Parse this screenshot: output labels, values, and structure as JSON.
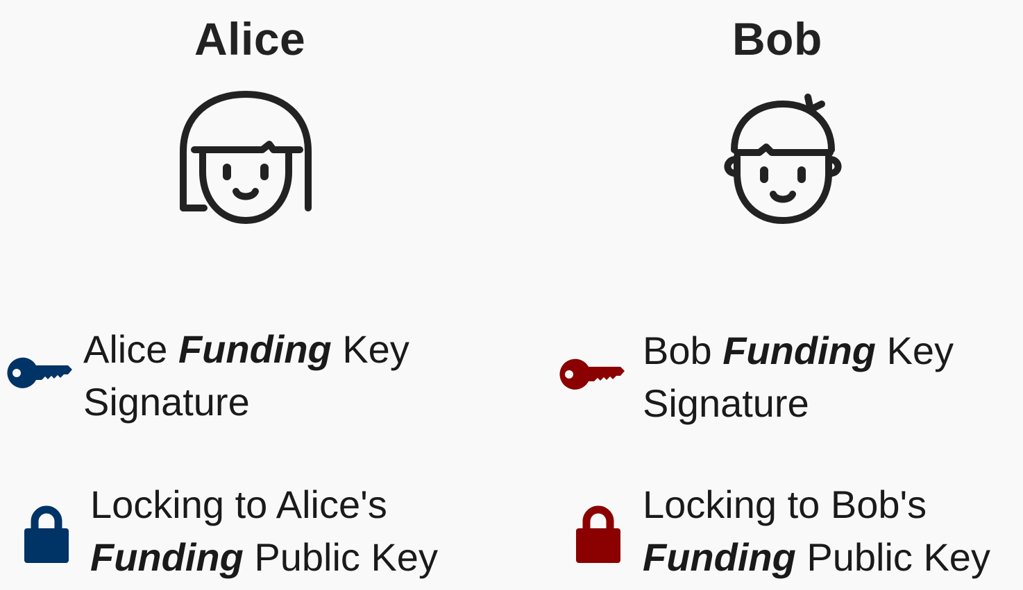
{
  "alice": {
    "name": "Alice",
    "avatar_icon": "girl-face-icon",
    "signature": {
      "prefix": "Alice",
      "emphasis": "Funding",
      "suffix": "Key",
      "line2": "Signature"
    },
    "locking": {
      "line1": "Locking to Alice's",
      "emphasis": "Funding",
      "suffix": "Public Key"
    },
    "color": "#003366"
  },
  "bob": {
    "name": "Bob",
    "avatar_icon": "boy-face-icon",
    "signature": {
      "prefix": "Bob",
      "emphasis": "Funding",
      "suffix": "Key",
      "line2": "Signature"
    },
    "locking": {
      "line1": "Locking to Bob's",
      "emphasis": "Funding",
      "suffix": "Public Key"
    },
    "color": "#8b0000"
  },
  "icons": {
    "key": "key-icon",
    "lock": "padlock-icon"
  }
}
